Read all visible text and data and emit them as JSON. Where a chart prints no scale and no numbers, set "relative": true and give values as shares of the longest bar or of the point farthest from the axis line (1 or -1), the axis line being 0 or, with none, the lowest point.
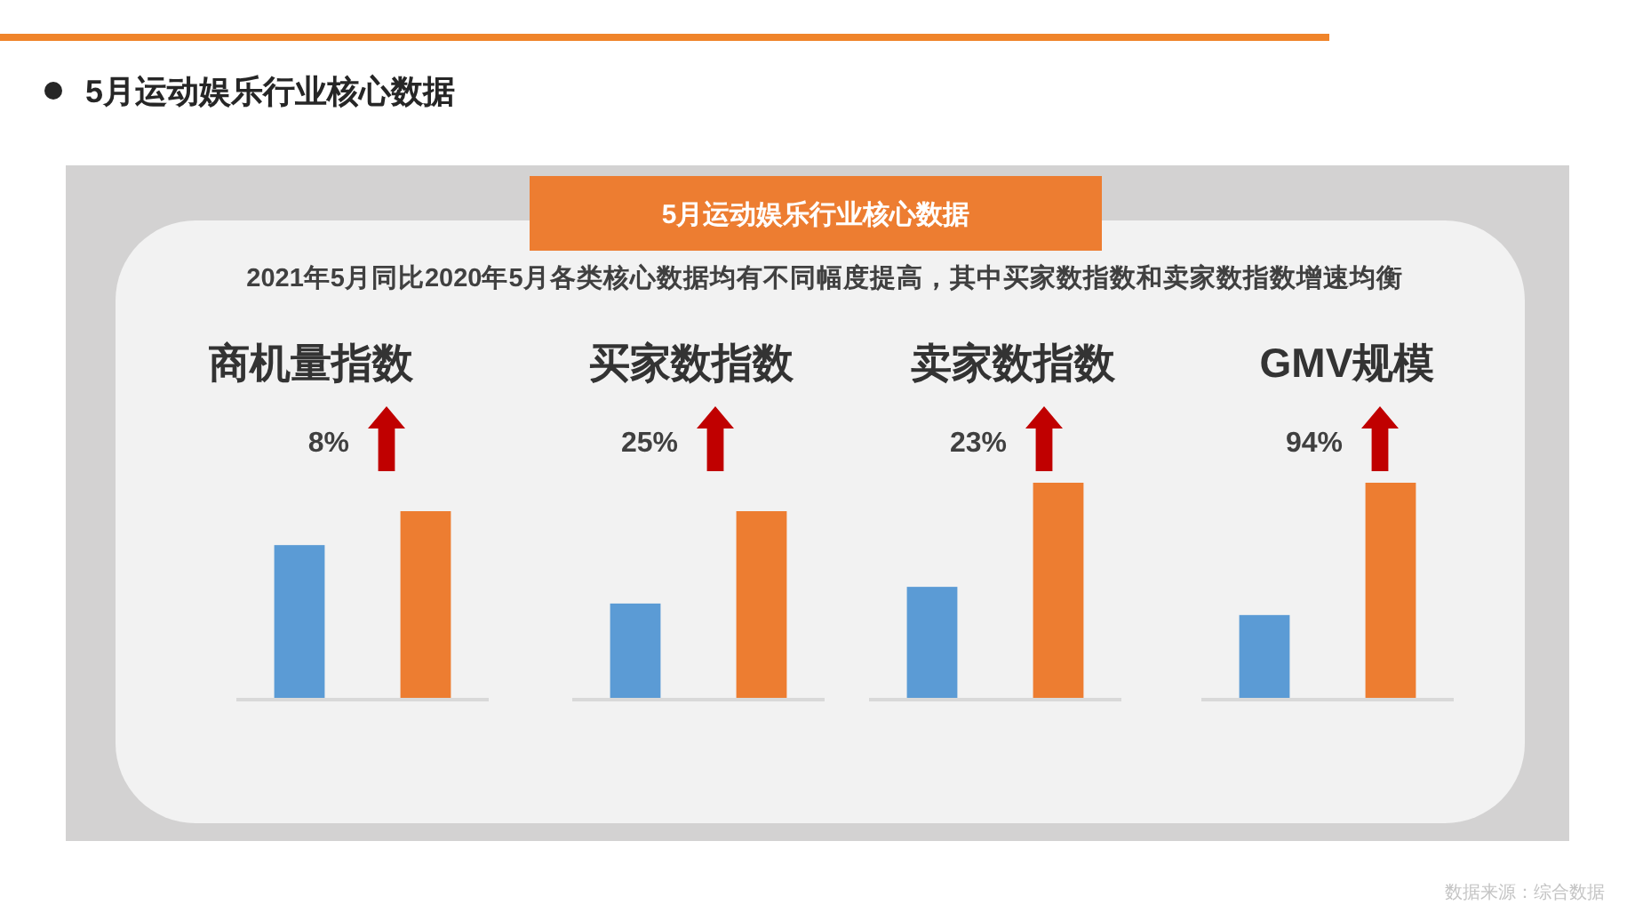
{
  "chart_data": [
    {
      "type": "other",
      "title": "5月运动娱乐行业核心数据",
      "subtitle": "2021年5月同比2020年5月各类核心数据均有不同幅度提高，其中买家数指数和卖家数指数增速均衡",
      "annotations": [
        "5月运动娱乐行业核心数据",
        "数据来源：综合数据"
      ]
    },
    {
      "type": "bar",
      "title": "商机量指数",
      "relative": true,
      "categories": [
        null,
        null
      ],
      "values": [
        0.82,
        1
      ],
      "colors": [
        "#5b9bd5",
        "#ed7d31"
      ],
      "annotations": [
        "8%"
      ]
    },
    {
      "type": "bar",
      "title": "买家数指数",
      "relative": true,
      "categories": [
        null,
        null
      ],
      "values": [
        0.51,
        1
      ],
      "colors": [
        "#5b9bd5",
        "#ed7d31"
      ],
      "annotations": [
        "25%"
      ]
    },
    {
      "type": "bar",
      "title": "卖家数指数",
      "relative": true,
      "categories": [
        null,
        null
      ],
      "values": [
        0.52,
        1
      ],
      "colors": [
        "#5b9bd5",
        "#ed7d31"
      ],
      "annotations": [
        "23%"
      ]
    },
    {
      "type": "bar",
      "title": "GMV规模",
      "relative": true,
      "categories": [
        null,
        null
      ],
      "values": [
        0.39,
        1
      ],
      "colors": [
        "#5b9bd5",
        "#ed7d31"
      ],
      "annotations": [
        "94%"
      ]
    }
  ]
}
